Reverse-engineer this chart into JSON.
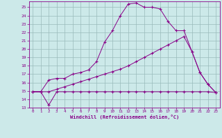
{
  "xlabel": "Windchill (Refroidissement éolien,°C)",
  "xlim": [
    -0.5,
    23.5
  ],
  "ylim": [
    13,
    25.7
  ],
  "yticks": [
    13,
    14,
    15,
    16,
    17,
    18,
    19,
    20,
    21,
    22,
    23,
    24,
    25
  ],
  "xticks": [
    0,
    1,
    2,
    3,
    4,
    5,
    6,
    7,
    8,
    9,
    10,
    11,
    12,
    13,
    14,
    15,
    16,
    17,
    18,
    19,
    20,
    21,
    22,
    23
  ],
  "bg_color": "#cce9e9",
  "line_color": "#880088",
  "grid_color": "#99bbbb",
  "line1_x": [
    0,
    1,
    2,
    3,
    4,
    5,
    6,
    7,
    8,
    9,
    10,
    11,
    12,
    13,
    14,
    15,
    16,
    17,
    18,
    19,
    20,
    21,
    22,
    23
  ],
  "line1_y": [
    14.9,
    14.9,
    16.3,
    16.5,
    16.5,
    17.0,
    17.2,
    17.5,
    18.5,
    20.8,
    22.2,
    24.0,
    25.4,
    25.5,
    25.0,
    25.0,
    24.8,
    23.3,
    22.2,
    22.2,
    19.7,
    17.2,
    15.8,
    14.8
  ],
  "line2_x": [
    0,
    1,
    2,
    3,
    4,
    5,
    6,
    7,
    8,
    9,
    10,
    11,
    12,
    13,
    14,
    15,
    16,
    17,
    18,
    19,
    20,
    21,
    22,
    23
  ],
  "line2_y": [
    14.9,
    14.9,
    14.9,
    15.2,
    15.5,
    15.8,
    16.1,
    16.4,
    16.7,
    17.0,
    17.3,
    17.6,
    18.0,
    18.5,
    19.0,
    19.5,
    20.0,
    20.5,
    21.0,
    21.5,
    19.7,
    17.2,
    15.8,
    14.8
  ],
  "line3_x": [
    0,
    1,
    2,
    3,
    4,
    5,
    6,
    7,
    8,
    9,
    10,
    11,
    12,
    13,
    14,
    15,
    16,
    17,
    18,
    19,
    20,
    21,
    22,
    23
  ],
  "line3_y": [
    14.9,
    14.9,
    13.3,
    14.9,
    14.9,
    14.9,
    14.9,
    14.9,
    14.9,
    14.9,
    14.9,
    14.9,
    14.9,
    14.9,
    14.9,
    14.9,
    14.9,
    14.9,
    14.9,
    14.9,
    14.9,
    14.9,
    14.9,
    14.8
  ]
}
